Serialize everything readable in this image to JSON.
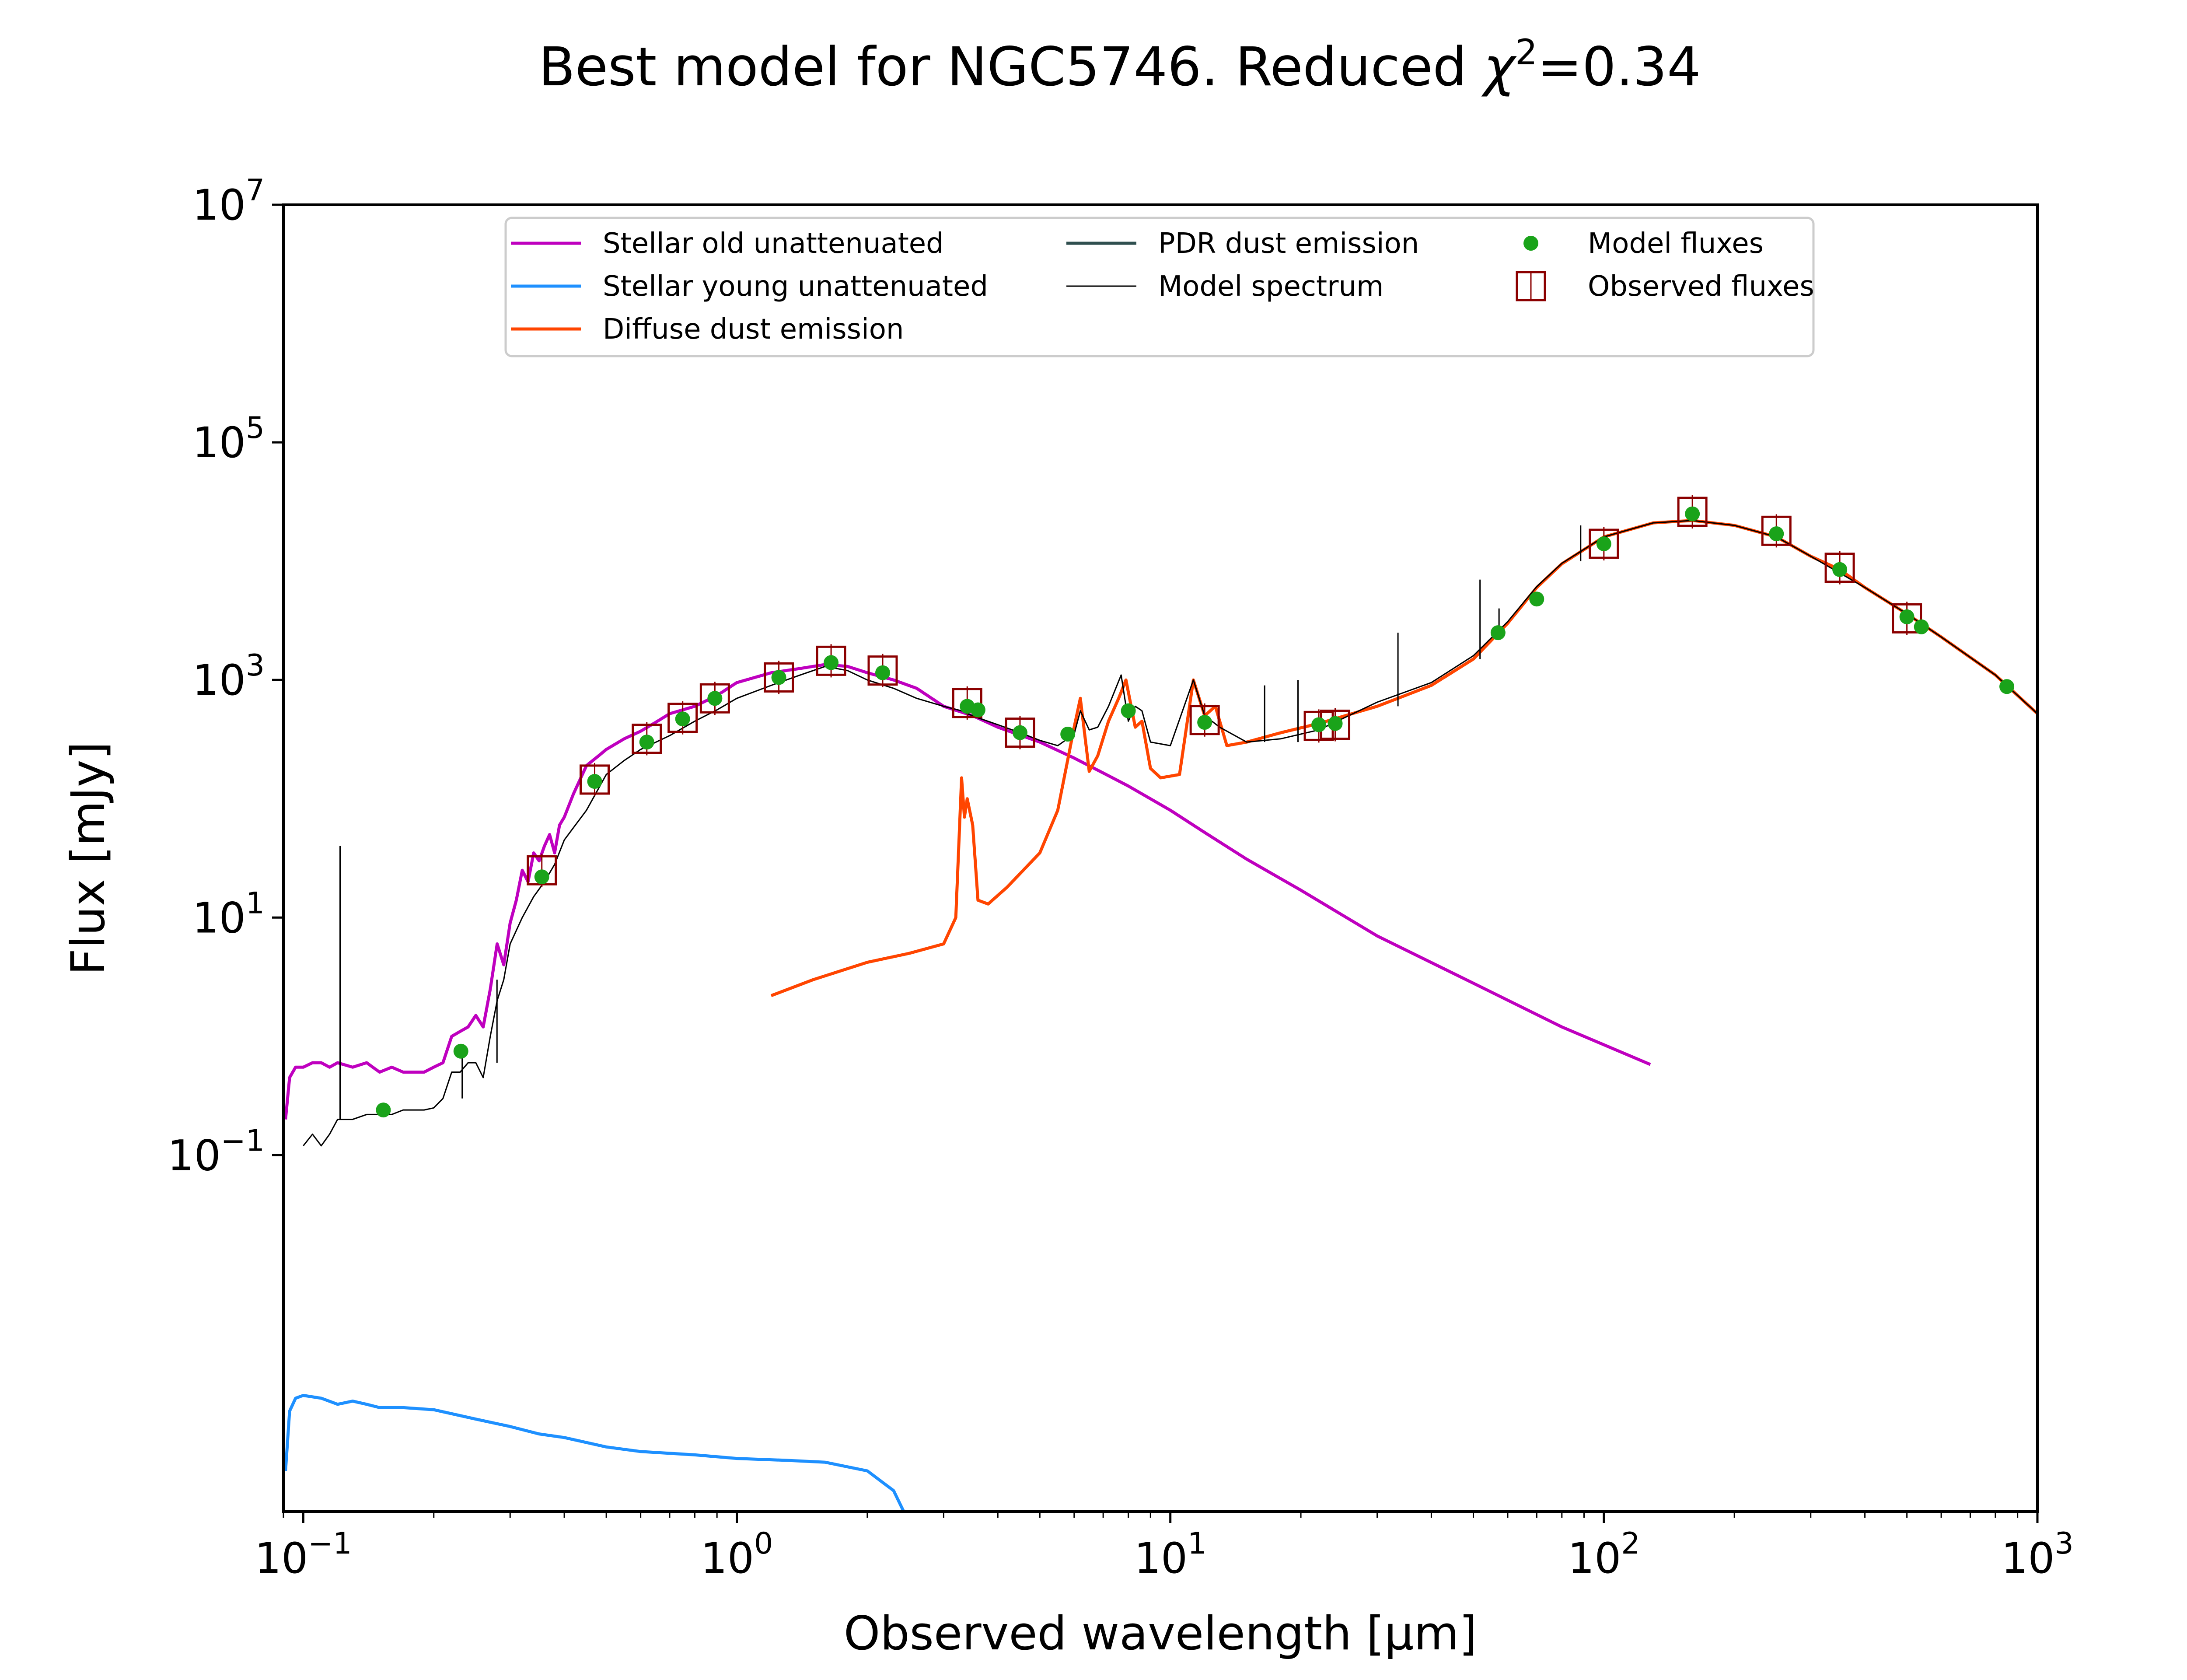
{
  "chart_data": {
    "type": "line",
    "title": "Best model for NGC5746. Reduced χ²=0.34",
    "title_parts": {
      "prefix": "Best model for NGC5746. Reduced ",
      "chi": "χ",
      "sup": "2",
      "suffix": "=0.34"
    },
    "xlabel": "Observed wavelength [μm]",
    "ylabel": "Flux [mJy]",
    "xscale": "log",
    "yscale": "log",
    "xlim": [
      0.09,
      1000
    ],
    "ylim": [
      0.0001,
      10000000
    ],
    "x_ticks": [
      {
        "value": 0.1,
        "base": "10",
        "exp": "−1"
      },
      {
        "value": 1,
        "base": "10",
        "exp": "0"
      },
      {
        "value": 10,
        "base": "10",
        "exp": "1"
      },
      {
        "value": 100,
        "base": "10",
        "exp": "2"
      },
      {
        "value": 1000,
        "base": "10",
        "exp": "3"
      }
    ],
    "y_ticks": [
      {
        "value": 0.1,
        "base": "10",
        "exp": "−1"
      },
      {
        "value": 10,
        "base": "10",
        "exp": "1"
      },
      {
        "value": 1000,
        "base": "10",
        "exp": "3"
      },
      {
        "value": 100000,
        "base": "10",
        "exp": "5"
      },
      {
        "value": 10000000,
        "base": "10",
        "exp": "7"
      }
    ],
    "grid": false,
    "legend_position": "top-center",
    "legend": [
      {
        "label": "Stellar old unattenuated",
        "kind": "line",
        "color": "#bf00bf"
      },
      {
        "label": "Stellar young unattenuated",
        "kind": "line",
        "color": "#1e90ff"
      },
      {
        "label": "Diffuse dust emission",
        "kind": "line",
        "color": "#ff4500"
      },
      {
        "label": "PDR dust emission",
        "kind": "line",
        "color": "#2f4f4f"
      },
      {
        "label": "Model spectrum",
        "kind": "thinline",
        "color": "#000000"
      },
      {
        "label": "Model fluxes",
        "kind": "dot",
        "color": "#1aa31a"
      },
      {
        "label": "Observed fluxes",
        "kind": "square",
        "color": "#8b0000"
      }
    ],
    "series": [
      {
        "name": "Stellar old unattenuated",
        "color": "#bf00bf",
        "x": [
          0.091,
          0.093,
          0.096,
          0.1,
          0.105,
          0.11,
          0.115,
          0.12,
          0.13,
          0.14,
          0.15,
          0.16,
          0.17,
          0.18,
          0.19,
          0.2,
          0.21,
          0.22,
          0.23,
          0.24,
          0.25,
          0.26,
          0.27,
          0.28,
          0.29,
          0.3,
          0.31,
          0.32,
          0.33,
          0.34,
          0.35,
          0.36,
          0.37,
          0.38,
          0.39,
          0.4,
          0.42,
          0.45,
          0.48,
          0.5,
          0.55,
          0.6,
          0.65,
          0.7,
          0.8,
          0.9,
          1.0,
          1.2,
          1.4,
          1.6,
          1.8,
          2.0,
          2.3,
          2.6,
          3.0,
          3.5,
          4.0,
          5.0,
          6.0,
          7.0,
          8.0,
          10,
          12,
          15,
          20,
          30,
          50,
          80,
          128
        ],
        "y": [
          0.2,
          0.45,
          0.55,
          0.55,
          0.6,
          0.6,
          0.55,
          0.6,
          0.55,
          0.6,
          0.5,
          0.55,
          0.5,
          0.5,
          0.5,
          0.55,
          0.6,
          1.0,
          1.1,
          1.2,
          1.5,
          1.2,
          2.5,
          6,
          4,
          9,
          14,
          25,
          20,
          35,
          30,
          40,
          50,
          35,
          60,
          70,
          110,
          190,
          230,
          260,
          320,
          370,
          440,
          520,
          600,
          740,
          950,
          1150,
          1250,
          1350,
          1300,
          1150,
          1000,
          850,
          600,
          500,
          400,
          300,
          220,
          165,
          128,
          80,
          52,
          31,
          17,
          7,
          2.8,
          1.2,
          0.58
        ]
      },
      {
        "name": "Stellar young unattenuated",
        "color": "#1e90ff",
        "x": [
          0.091,
          0.093,
          0.096,
          0.1,
          0.11,
          0.12,
          0.13,
          0.14,
          0.15,
          0.17,
          0.2,
          0.25,
          0.3,
          0.35,
          0.4,
          0.5,
          0.6,
          0.8,
          1.0,
          1.3,
          1.6,
          2.0,
          2.3,
          2.5
        ],
        "y": [
          0.00022,
          0.0007,
          0.0009,
          0.00095,
          0.0009,
          0.0008,
          0.00085,
          0.0008,
          0.00075,
          0.00075,
          0.00072,
          0.0006,
          0.00052,
          0.00045,
          0.00042,
          0.00035,
          0.00032,
          0.0003,
          0.00028,
          0.00027,
          0.00026,
          0.00022,
          0.00015,
          8e-05
        ]
      },
      {
        "name": "Diffuse dust emission",
        "color": "#ff4500",
        "x": [
          1.2,
          1.5,
          2.0,
          2.5,
          3.0,
          3.2,
          3.3,
          3.35,
          3.4,
          3.5,
          3.6,
          3.8,
          4.2,
          5.0,
          5.5,
          6.0,
          6.2,
          6.5,
          6.8,
          7.2,
          7.6,
          7.9,
          8.3,
          8.6,
          9.0,
          9.5,
          10.5,
          11.3,
          12.0,
          12.7,
          13.5,
          15,
          18,
          22,
          30,
          40,
          50,
          60,
          70,
          80,
          100,
          130,
          160,
          200,
          250,
          300,
          350,
          400,
          500,
          600,
          800,
          1000
        ],
        "y": [
          2.2,
          3.0,
          4.2,
          5.0,
          6.0,
          10,
          150,
          70,
          100,
          60,
          14,
          13,
          18,
          35,
          80,
          400,
          700,
          170,
          230,
          450,
          700,
          1000,
          400,
          450,
          180,
          150,
          160,
          1000,
          500,
          600,
          280,
          300,
          360,
          430,
          600,
          900,
          1500,
          3000,
          6000,
          9500,
          16000,
          21000,
          22000,
          20000,
          16000,
          11000,
          8500,
          6000,
          3600,
          2300,
          1100,
          520
        ]
      },
      {
        "name": "Model spectrum",
        "color": "#000000",
        "x": [
          0.1,
          0.105,
          0.11,
          0.115,
          0.12,
          0.13,
          0.14,
          0.15,
          0.16,
          0.17,
          0.18,
          0.19,
          0.2,
          0.21,
          0.22,
          0.23,
          0.24,
          0.25,
          0.26,
          0.27,
          0.28,
          0.29,
          0.3,
          0.32,
          0.34,
          0.36,
          0.38,
          0.4,
          0.45,
          0.5,
          0.55,
          0.6,
          0.7,
          0.8,
          0.9,
          1.0,
          1.2,
          1.4,
          1.6,
          1.8,
          2.0,
          2.3,
          2.6,
          3.0,
          3.3,
          3.4,
          3.6,
          4.0,
          4.5,
          5.0,
          5.5,
          6.0,
          6.2,
          6.5,
          6.8,
          7.2,
          7.7,
          8.0,
          8.3,
          8.6,
          9.0,
          10,
          11.3,
          12,
          13,
          15,
          18,
          22,
          30,
          40,
          50,
          60,
          70,
          80,
          100,
          130,
          160,
          200,
          250,
          300,
          400,
          500,
          600,
          800,
          1000
        ],
        "y": [
          0.12,
          0.15,
          0.12,
          0.15,
          0.2,
          0.2,
          0.22,
          0.22,
          0.22,
          0.24,
          0.24,
          0.24,
          0.25,
          0.3,
          0.5,
          0.5,
          0.6,
          0.6,
          0.45,
          1.0,
          2.0,
          3.0,
          6,
          10,
          15,
          20,
          28,
          45,
          80,
          160,
          210,
          260,
          340,
          450,
          560,
          700,
          900,
          1100,
          1300,
          1200,
          1000,
          850,
          700,
          600,
          550,
          520,
          480,
          420,
          360,
          310,
          280,
          350,
          550,
          380,
          400,
          600,
          1100,
          450,
          600,
          550,
          300,
          280,
          1000,
          500,
          400,
          300,
          320,
          380,
          650,
          950,
          1600,
          3100,
          6100,
          9600,
          16000,
          21000,
          22000,
          20000,
          16000,
          11000,
          6000,
          3600,
          2300,
          1100,
          520
        ]
      }
    ],
    "spikes": [
      {
        "x": 0.1216,
        "y_from": 0.2,
        "y_to": 40
      },
      {
        "x": 0.2326,
        "y_from": 0.3,
        "y_to": 0.8
      },
      {
        "x": 0.2798,
        "y_from": 0.6,
        "y_to": 3
      },
      {
        "x": 16.5,
        "y_from": 300,
        "y_to": 900
      },
      {
        "x": 19.7,
        "y_from": 300,
        "y_to": 1000
      },
      {
        "x": 33.5,
        "y_from": 600,
        "y_to": 2500
      },
      {
        "x": 51.8,
        "y_from": 1500,
        "y_to": 7000
      },
      {
        "x": 57.3,
        "y_from": 2500,
        "y_to": 4000
      },
      {
        "x": 88.4,
        "y_from": 10000,
        "y_to": 20000
      }
    ],
    "model_fluxes": {
      "x": [
        0.153,
        0.231,
        0.355,
        0.47,
        0.62,
        0.75,
        0.89,
        1.25,
        1.65,
        2.17,
        3.4,
        3.6,
        4.5,
        5.8,
        8.0,
        12.0,
        22.0,
        24.0,
        57.0,
        70.0,
        100.0,
        160.0,
        250.0,
        350.0,
        500.0,
        540.0,
        850.0
      ],
      "y": [
        0.24,
        0.75,
        22,
        140,
        300,
        470,
        700,
        1050,
        1400,
        1150,
        600,
        560,
        360,
        350,
        550,
        440,
        420,
        430,
        2500,
        4800,
        14000,
        25000,
        17000,
        8500,
        3400,
        2800,
        880
      ]
    },
    "observed_fluxes": {
      "x": [
        0.355,
        0.47,
        0.62,
        0.75,
        0.89,
        1.25,
        1.65,
        2.17,
        3.4,
        4.5,
        12.0,
        22.0,
        24.0,
        100.0,
        160.0,
        250.0,
        350.0,
        500.0
      ],
      "y": [
        25,
        145,
        320,
        480,
        700,
        1050,
        1450,
        1200,
        640,
        360,
        460,
        410,
        420,
        14000,
        26000,
        18000,
        8800,
        3300
      ]
    }
  }
}
